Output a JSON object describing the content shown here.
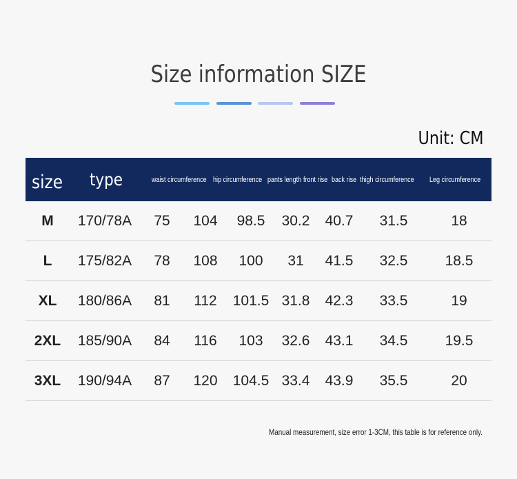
{
  "title": "Size information SIZE",
  "accent_colors": [
    "#7cc3f0",
    "#5a93d6",
    "#b8c6f0",
    "#8f7fd8"
  ],
  "unit_label": "Unit: CM",
  "header": {
    "size": "size",
    "type": "type",
    "waist": "waist circumference",
    "hip": "hip circumference",
    "pants_length": "pants length",
    "front_rise": "front rise",
    "back_rise": "back rise",
    "thigh": "thigh circumference",
    "leg": "Leg circumference"
  },
  "header_color": "#12295e",
  "rows": [
    {
      "size": "M",
      "type": "170/78A",
      "waist": "75",
      "hip": "104",
      "pants_length": "98.5",
      "front_rise": "30.2",
      "back_rise": "40.7",
      "thigh": "31.5",
      "leg": "18"
    },
    {
      "size": "L",
      "type": "175/82A",
      "waist": "78",
      "hip": "108",
      "pants_length": "100",
      "front_rise": "31",
      "back_rise": "41.5",
      "thigh": "32.5",
      "leg": "18.5"
    },
    {
      "size": "XL",
      "type": "180/86A",
      "waist": "81",
      "hip": "112",
      "pants_length": "101.5",
      "front_rise": "31.8",
      "back_rise": "42.3",
      "thigh": "33.5",
      "leg": "19"
    },
    {
      "size": "2XL",
      "type": "185/90A",
      "waist": "84",
      "hip": "116",
      "pants_length": "103",
      "front_rise": "32.6",
      "back_rise": "43.1",
      "thigh": "34.5",
      "leg": "19.5"
    },
    {
      "size": "3XL",
      "type": "190/94A",
      "waist": "87",
      "hip": "120",
      "pants_length": "104.5",
      "front_rise": "33.4",
      "back_rise": "43.9",
      "thigh": "35.5",
      "leg": "20"
    }
  ],
  "footnote": "Manual measurement, size error 1-3CM, this table is for reference only."
}
